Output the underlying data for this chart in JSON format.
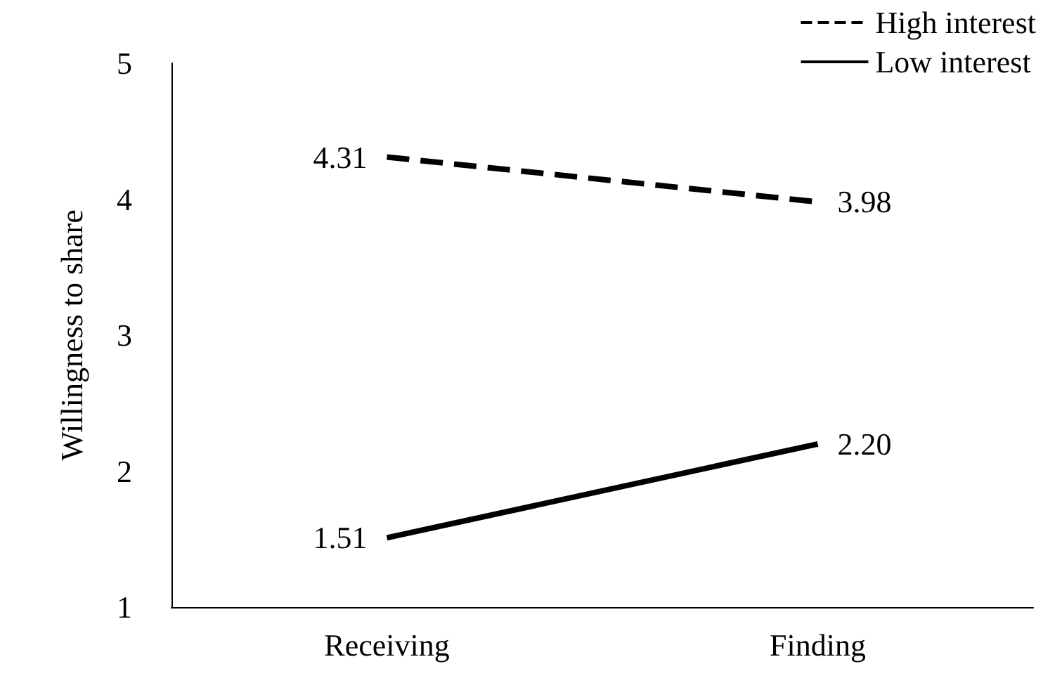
{
  "chart_data": {
    "type": "line",
    "ylabel": "Willingness to share",
    "categories": [
      "Receiving",
      "Finding"
    ],
    "series": [
      {
        "name": "High interest",
        "color": "#000000",
        "values": [
          4.31,
          3.98
        ],
        "value_labels": [
          "4.31",
          "3.98"
        ],
        "line_style": "dashed"
      },
      {
        "name": "Low interest",
        "color": "#000000",
        "values": [
          1.51,
          2.2
        ],
        "value_labels": [
          "1.51",
          "2.20"
        ],
        "line_style": "solid"
      }
    ],
    "ylim": [
      1,
      5
    ],
    "yticks": [
      1,
      2,
      3,
      4,
      5
    ],
    "grid": false,
    "legend": "top right",
    "marker": "none"
  }
}
